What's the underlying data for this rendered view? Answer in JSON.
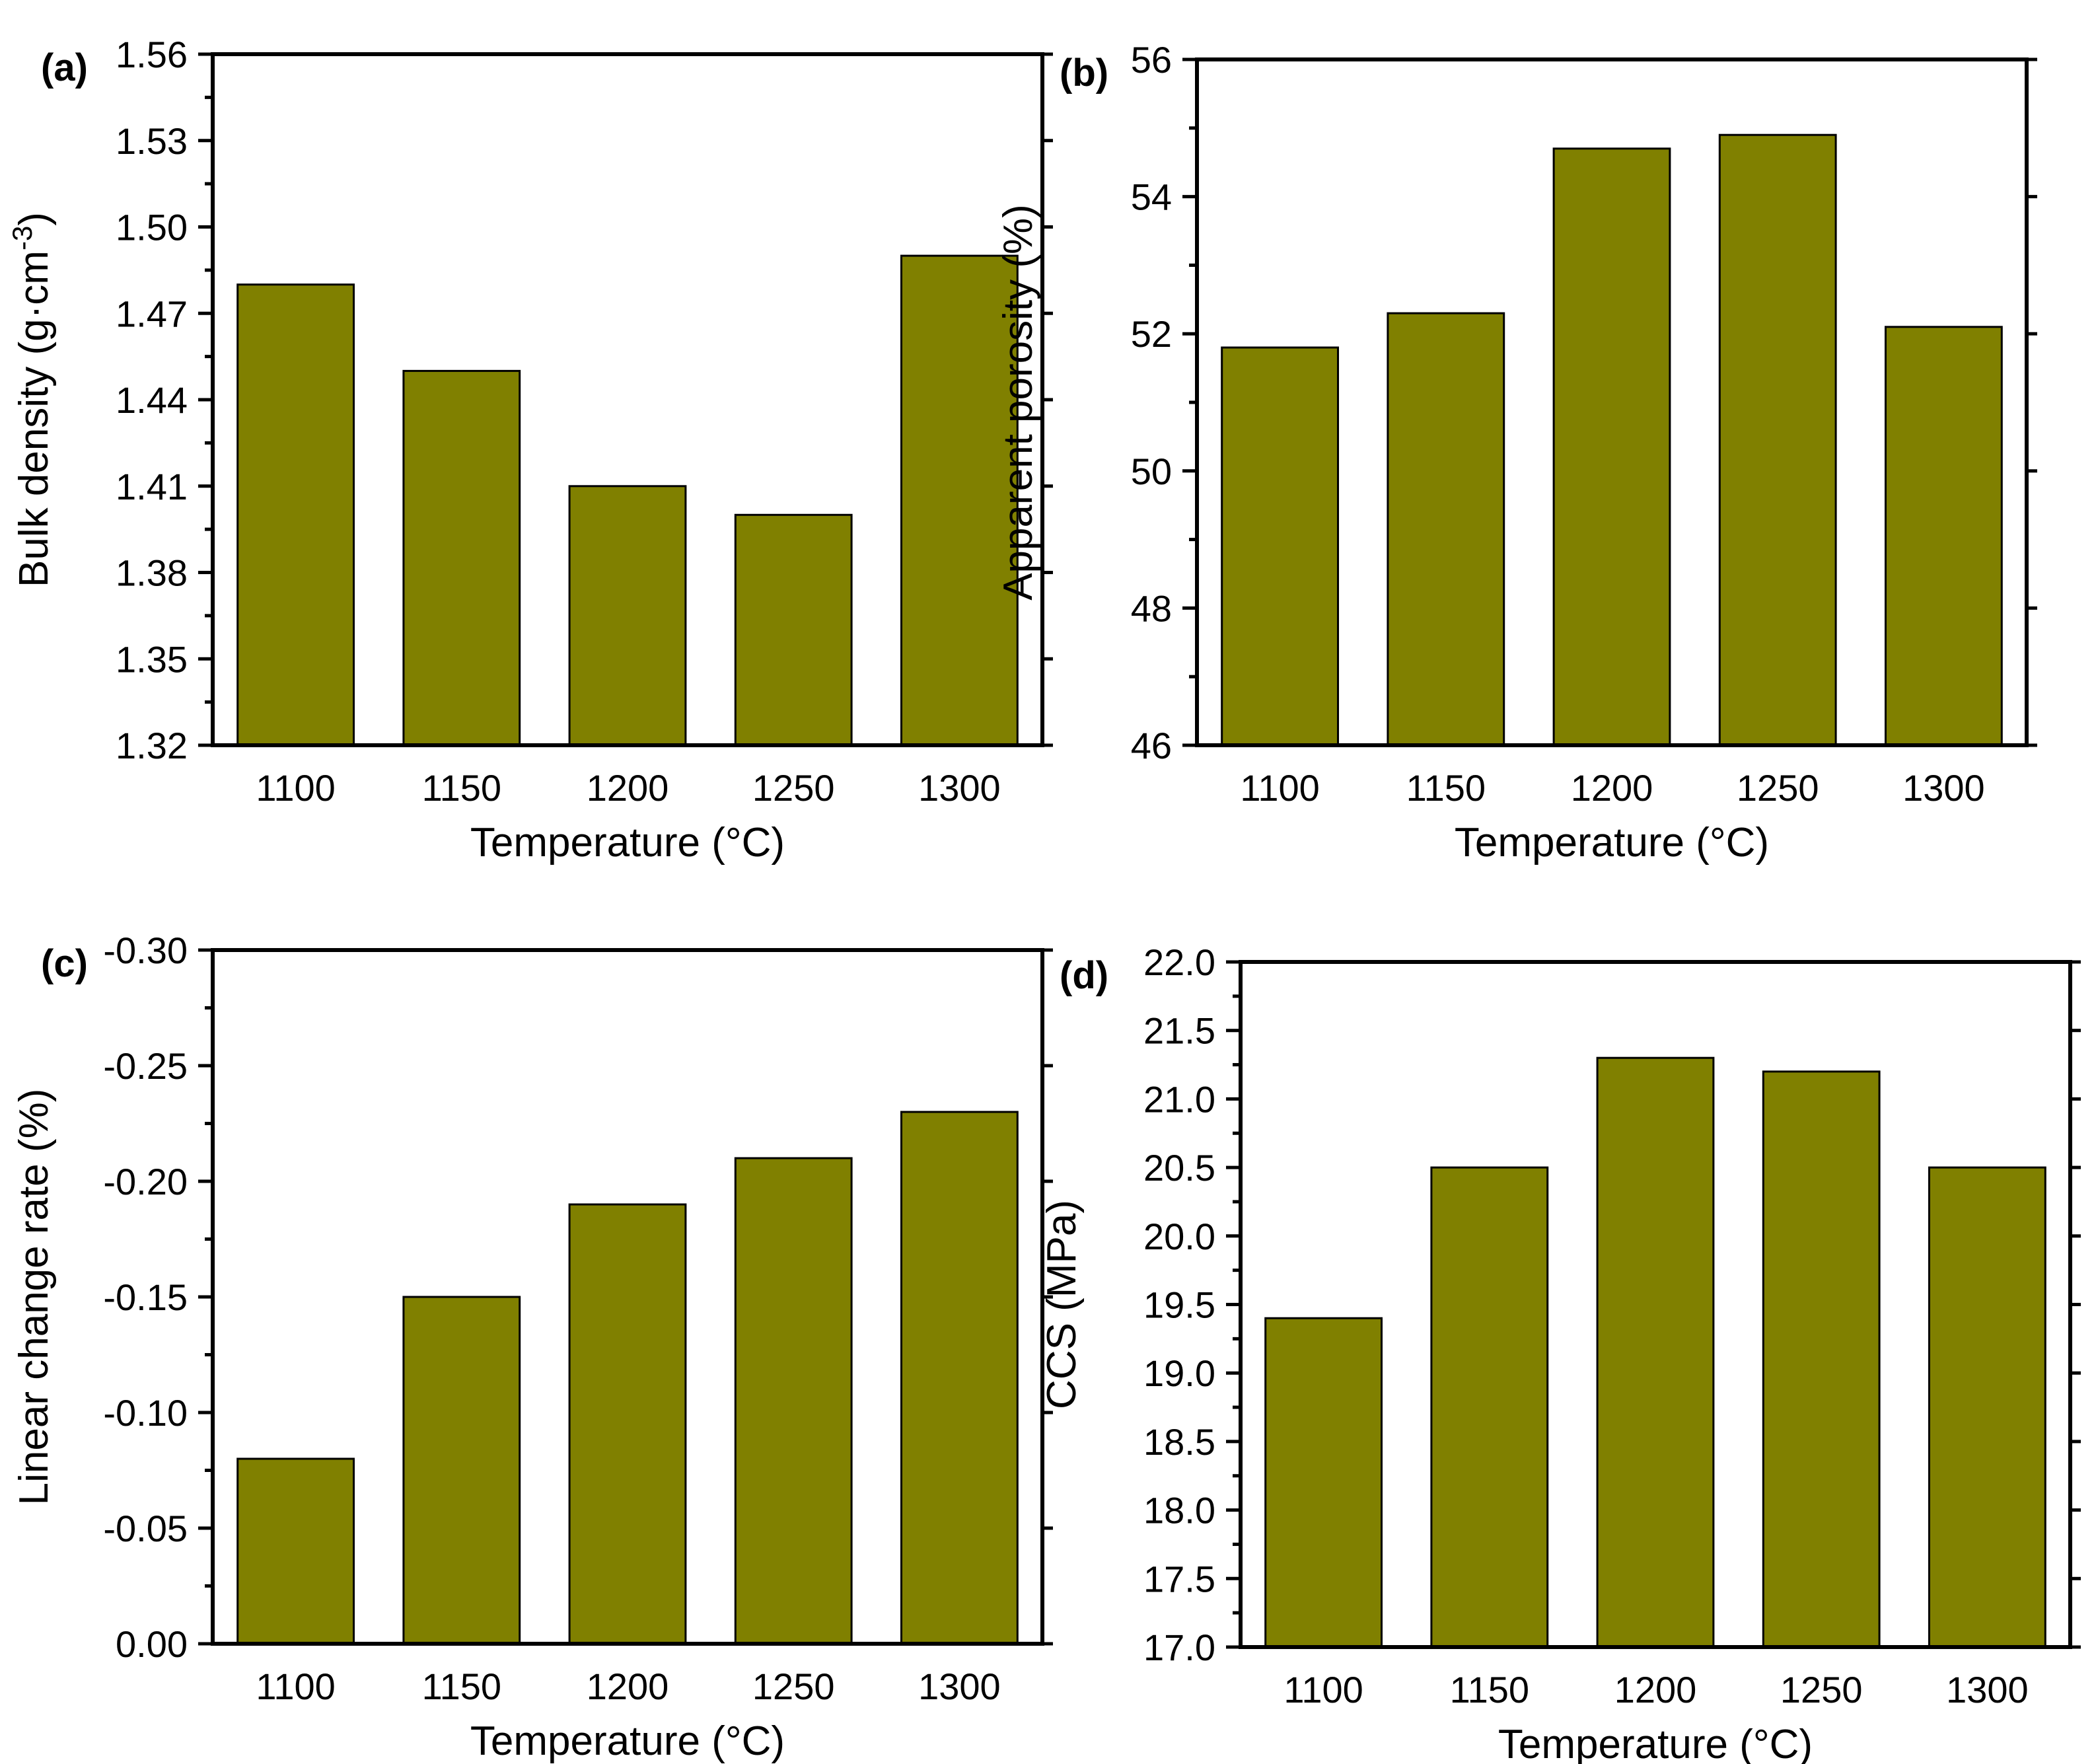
{
  "figure": {
    "bar_color": "#808000",
    "frame_color": "#000000"
  },
  "chart_data": [
    {
      "id": "a",
      "type": "bar",
      "panel_label": "(a)",
      "categories": [
        "1100",
        "1150",
        "1200",
        "1250",
        "1300"
      ],
      "values": [
        1.48,
        1.45,
        1.41,
        1.4,
        1.49
      ],
      "xlabel": "Temperature (°C)",
      "ylabel": {
        "prefix": "Bulk density (g·cm",
        "sup": "-3",
        "suffix": ")"
      },
      "ylim": [
        1.32,
        1.56
      ],
      "yticks": [
        "1.32",
        "1.35",
        "1.38",
        "1.41",
        "1.44",
        "1.47",
        "1.50",
        "1.53",
        "1.56"
      ],
      "grid": false
    },
    {
      "id": "b",
      "type": "bar",
      "panel_label": "(b)",
      "categories": [
        "1100",
        "1150",
        "1200",
        "1250",
        "1300"
      ],
      "values": [
        51.8,
        52.3,
        54.7,
        54.9,
        52.1
      ],
      "xlabel": "Temperature (°C)",
      "ylabel": "Apparent porosity (%)",
      "ylim": [
        46,
        56
      ],
      "yticks": [
        "46",
        "48",
        "50",
        "52",
        "54",
        "56"
      ],
      "grid": false
    },
    {
      "id": "c",
      "type": "bar",
      "panel_label": "(c)",
      "categories": [
        "1100",
        "1150",
        "1200",
        "1250",
        "1300"
      ],
      "values": [
        -0.08,
        -0.15,
        -0.19,
        -0.21,
        -0.23
      ],
      "xlabel": "Temperature (°C)",
      "ylabel": "Linear change rate (%)",
      "ylim": [
        0.0,
        -0.3
      ],
      "yticks": [
        "0.00",
        "-0.05",
        "-0.10",
        "-0.15",
        "-0.20",
        "-0.25",
        "-0.30"
      ],
      "grid": false
    },
    {
      "id": "d",
      "type": "bar",
      "panel_label": "(d)",
      "categories": [
        "1100",
        "1150",
        "1200",
        "1250",
        "1300"
      ],
      "values": [
        19.4,
        20.5,
        21.3,
        21.2,
        20.5
      ],
      "xlabel": "Temperature (°C)",
      "ylabel": "CCS (MPa)",
      "ylim": [
        17.0,
        22.0
      ],
      "yticks": [
        "17.0",
        "17.5",
        "18.0",
        "18.5",
        "19.0",
        "19.5",
        "20.0",
        "20.5",
        "21.0",
        "21.5",
        "22.0"
      ],
      "grid": false
    }
  ]
}
